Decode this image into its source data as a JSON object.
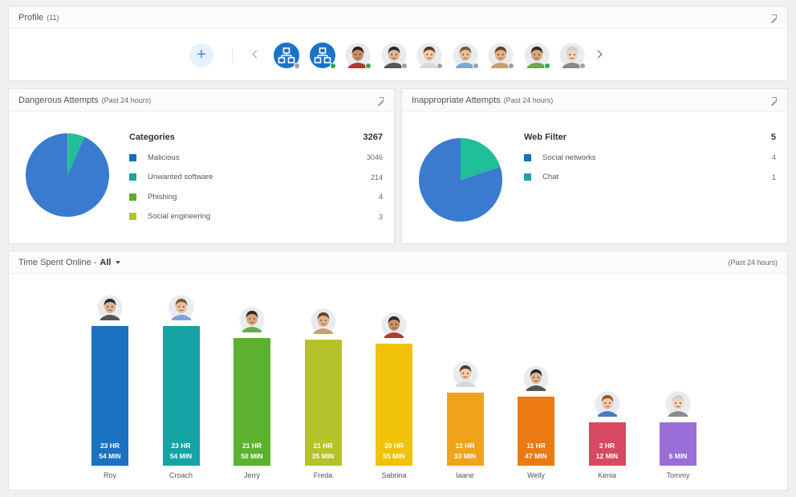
{
  "profile": {
    "title": "Profile",
    "count": "(11)",
    "add_label": "+",
    "avatars": [
      {
        "name": "network-group-1",
        "type": "network",
        "status_color": "#9aa0a6"
      },
      {
        "name": "network-group-2",
        "type": "network",
        "status_color": "#2fa84f"
      },
      {
        "name": "child-1",
        "type": "face",
        "skin": "#c98e6a",
        "hair": "#3a2216",
        "shirt": "#b03a2e",
        "status_color": "#2fa84f"
      },
      {
        "name": "child-2",
        "type": "face",
        "skin": "#e0b391",
        "hair": "#2a2a2a",
        "shirt": "#555555",
        "status_color": "#9aa0a6"
      },
      {
        "name": "child-3",
        "type": "face",
        "skin": "#f0c9a8",
        "hair": "#5a3a22",
        "shirt": "#d8d8d8",
        "status_color": "#9aa0a6"
      },
      {
        "name": "child-4",
        "type": "face",
        "skin": "#e8bf9c",
        "hair": "#7a5a3a",
        "shirt": "#7aa7d8",
        "status_color": "#9aa0a6"
      },
      {
        "name": "child-5",
        "type": "face",
        "skin": "#e3b08a",
        "hair": "#6b3f22",
        "shirt": "#c8a070",
        "status_color": "#9aa0a6"
      },
      {
        "name": "child-6",
        "type": "face",
        "skin": "#d9a77f",
        "hair": "#3a2a1a",
        "shirt": "#6aa84f",
        "status_color": "#2fa84f"
      },
      {
        "name": "child-7",
        "type": "face",
        "skin": "#f0d6c0",
        "hair": "#cfcfcf",
        "shirt": "#8a8a8a",
        "status_color": "#9aa0a6"
      }
    ]
  },
  "dangerous": {
    "title": "Dangerous Attempts",
    "subtitle": "(Past 24 hours)",
    "legend_title": "Categories",
    "total": "3267",
    "items": [
      {
        "label": "Malicious",
        "value": 3046,
        "display": "3046",
        "color": "#1a6fb8"
      },
      {
        "label": "Unwanted software",
        "value": 214,
        "display": "214",
        "color": "#1aa6a0"
      },
      {
        "label": "Phishing",
        "value": 4,
        "display": "4",
        "color": "#5aae2e"
      },
      {
        "label": "Social engineering",
        "value": 3,
        "display": "3",
        "color": "#b5c42a"
      }
    ],
    "pie_colors": [
      "#3a7bd0",
      "#1fbf98",
      "#5aae2e",
      "#b5c42a"
    ]
  },
  "inappropriate": {
    "title": "Inappropriate Attempts",
    "subtitle": "(Past 24 hours)",
    "legend_title": "Web Filter",
    "total": "5",
    "items": [
      {
        "label": "Social networks",
        "value": 4,
        "display": "4",
        "color": "#1a6fb8"
      },
      {
        "label": "Chat",
        "value": 1,
        "display": "1",
        "color": "#1aa6a0"
      }
    ],
    "pie_colors": [
      "#3a7bd0",
      "#1fbf98"
    ]
  },
  "time": {
    "title": "Time Spent Online -",
    "filter": "All",
    "range": "(Past 24 hours)",
    "chart_data": {
      "type": "bar",
      "categories": [
        "Roy",
        "Croach",
        "Jerry",
        "Freda",
        "Sabrina",
        "Iaane",
        "Welly",
        "Kenia",
        "Tommy"
      ],
      "values_minutes": [
        1434,
        1434,
        1310,
        1295,
        1255,
        753,
        707,
        132,
        6
      ],
      "labels": [
        [
          "23 HR",
          "54 MIN"
        ],
        [
          "23 HR",
          "54 MIN"
        ],
        [
          "21 HR",
          "50 MIN"
        ],
        [
          "21 HR",
          "35 MIN"
        ],
        [
          "20 HR",
          "55 MIN"
        ],
        [
          "12 HR",
          "33 MIN"
        ],
        [
          "11 HR",
          "47 MIN"
        ],
        [
          "2 HR",
          "12 MIN"
        ],
        [
          "",
          "6 MIN"
        ]
      ],
      "colors": [
        "#1a72c0",
        "#16a3a6",
        "#5cb22e",
        "#b5c22a",
        "#f0c20a",
        "#f0a31a",
        "#ec7a12",
        "#d84a62",
        "#9a6ed8"
      ],
      "avatar_skin": [
        "#e0b391",
        "#e8bf9c",
        "#d9a77f",
        "#e3b08a",
        "#c98e6a",
        "#f0c9a8",
        "#e0b391",
        "#f0c9a8",
        "#f0d6c0"
      ],
      "avatar_hair": [
        "#2a2a2a",
        "#7a5a3a",
        "#3a2a1a",
        "#6b3f22",
        "#3a2216",
        "#5a3a22",
        "#2a2a2a",
        "#8a5a2a",
        "#cfcfcf"
      ],
      "avatar_shirt": [
        "#555555",
        "#7aa7d8",
        "#6aa84f",
        "#c8a070",
        "#b03a2e",
        "#d8d8d8",
        "#555555",
        "#4a7ac8",
        "#8a8a8a"
      ]
    }
  }
}
